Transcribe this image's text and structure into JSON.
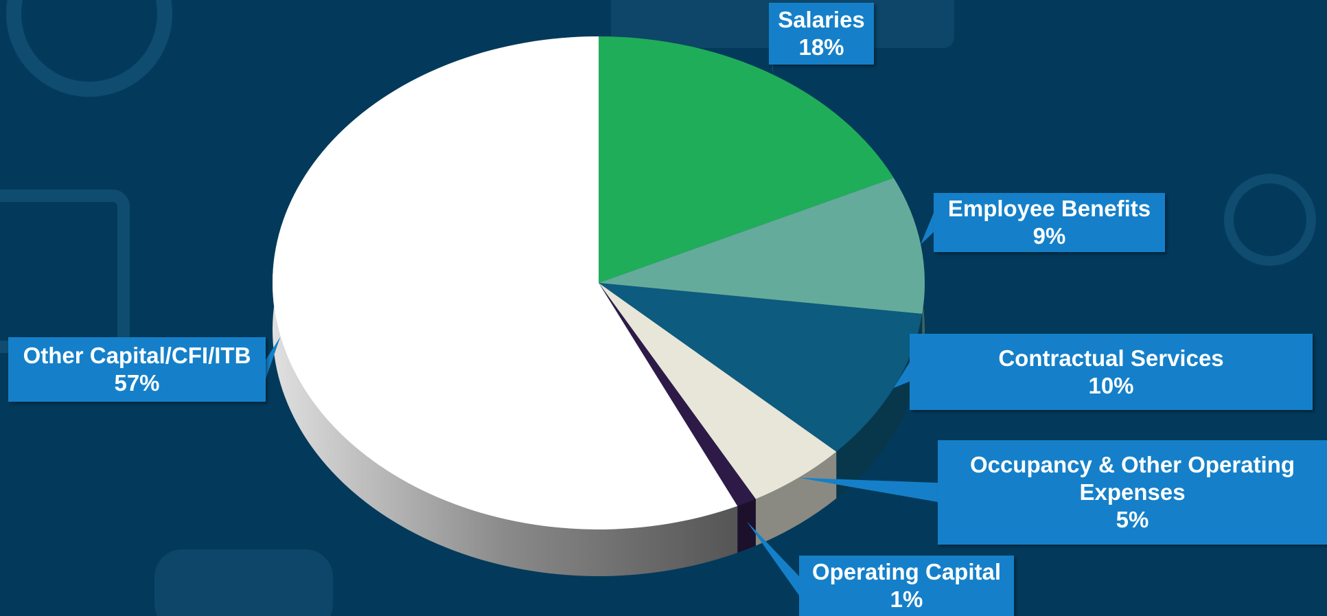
{
  "chart_data": {
    "type": "pie",
    "categories": [
      "Salaries",
      "Employee Benefits",
      "Contractual Services",
      "Occupancy & Other Operating Expenses",
      "Operating Capital",
      "Other Capital/CFI/ITB"
    ],
    "values": [
      18,
      9,
      10,
      5,
      1,
      57
    ],
    "value_labels": [
      "18%",
      "9%",
      "10%",
      "5%",
      "1%",
      "57%"
    ],
    "colors": [
      "#1fad5a",
      "#64ab9c",
      "#0d5b7e",
      "#e8e6d8",
      "#2e1a47",
      "#ffffff"
    ]
  }
}
